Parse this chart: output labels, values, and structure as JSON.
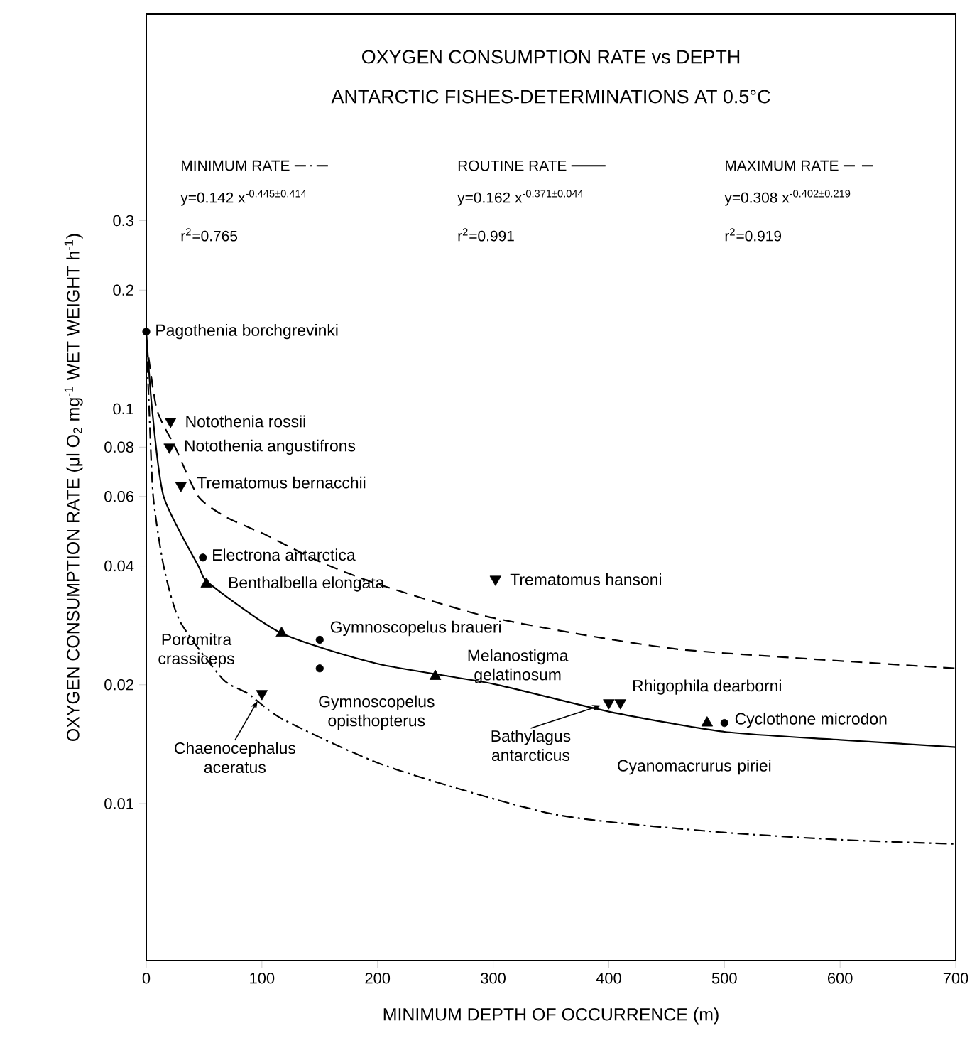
{
  "chart_data": {
    "type": "scatter",
    "title": "OXYGEN CONSUMPTION RATE vs DEPTH",
    "subtitle": "ANTARCTIC FISHES-DETERMINATIONS AT 0.5°C",
    "xlabel": "MINIMUM DEPTH OF OCCURRENCE (m)",
    "ylabel": "OXYGEN CONSUMPTION RATE (μl O$_{2}$   mg$^{-1}$ WET WEIGHT h$^{-1}$)",
    "log": "y",
    "legend": "top",
    "xlim": [
      0,
      700
    ],
    "ylim": [
      0.004,
      1
    ],
    "xticks": [
      0,
      100,
      200,
      300,
      400,
      500,
      600,
      700
    ],
    "yticks": [
      0.01,
      0.02,
      0.04,
      0.06,
      0.08,
      0.1,
      0.2,
      0.3
    ],
    "series": [
      {
        "name": "MINIMUM RATE",
        "type": "line",
        "line_style": "dashdot",
        "marker": "none",
        "color": "#000000",
        "x": [
          0,
          2.5,
          6,
          15,
          29,
          66,
          88,
          119,
          209,
          352,
          488,
          600,
          700
        ],
        "values": [
          0.15,
          0.1,
          0.06,
          0.04,
          0.029,
          0.0207,
          0.019,
          0.0163,
          0.0124,
          0.0094,
          0.0085,
          0.0081,
          0.0079
        ]
      },
      {
        "name": "ROUTINE RATE",
        "type": "line",
        "line_style": "solid",
        "marker": "none",
        "color": "#000000",
        "x": [
          0,
          5,
          15,
          45,
          55,
          117,
          200,
          300,
          400,
          500,
          600,
          700
        ],
        "values": [
          0.157,
          0.1,
          0.06,
          0.04,
          0.036,
          0.027,
          0.0226,
          0.0201,
          0.0171,
          0.0152,
          0.0145,
          0.0139
        ]
      },
      {
        "name": "MAXIMUM RATE",
        "type": "line",
        "line_style": "dashed",
        "marker": "none",
        "color": "#000000",
        "x": [
          0,
          9,
          25,
          45,
          70,
          103,
          150,
          200,
          290,
          380,
          460,
          550,
          700
        ],
        "values": [
          0.15,
          0.1,
          0.08,
          0.06,
          0.053,
          0.048,
          0.041,
          0.036,
          0.03,
          0.0267,
          0.0246,
          0.0235,
          0.022
        ]
      },
      {
        "marker": "circle",
        "color": "#000000",
        "x": [
          0,
          49,
          150,
          150,
          500
        ],
        "values": [
          0.157,
          0.042,
          0.026,
          0.022,
          0.016
        ]
      },
      {
        "marker": "triangle",
        "color": "#000000",
        "x": [
          52,
          117,
          250,
          485
        ],
        "values": [
          0.036,
          0.027,
          0.021,
          0.016
        ]
      },
      {
        "marker": "triangle-down",
        "color": "#000000",
        "x": [
          21,
          20,
          30,
          302,
          100,
          400,
          410
        ],
        "values": [
          0.093,
          0.08,
          0.064,
          0.037,
          0.019,
          0.018,
          0.018
        ]
      }
    ],
    "annotations": [
      "y=0.142 x$^{-0.445±0.414}$",
      "r$^{2}$=0.765",
      "y=0.162 x$^{-0.371±0.044}$",
      "r$^{2}$=0.991",
      "y=0.308 x$^{-0.402±0.219}$",
      "r$^{2}$=0.919",
      {
        "text": "Pagothenia borchgrevinki",
        "x": 0,
        "y": 0.157
      },
      {
        "text": "Notothenia rossii",
        "x": 21,
        "y": 0.093
      },
      {
        "text": "Notothenia angustifrons",
        "x": 20,
        "y": 0.08
      },
      {
        "text": "Trematomus bernacchii",
        "x": 30,
        "y": 0.064
      },
      {
        "text": "Electrona antarctica",
        "x": 49,
        "y": 0.042
      },
      {
        "text": "Benthalbella elongata",
        "x": 52,
        "y": 0.036
      },
      {
        "text": "Trematomus hansoni",
        "x": 302,
        "y": 0.037
      },
      {
        "text": "Poromitra crassiceps",
        "x": 117,
        "y": 0.027
      },
      {
        "text": "Gymnoscopelus braueri",
        "x": 150,
        "y": 0.026
      },
      {
        "text": "Gymnoscopelus opisthopterus",
        "x": 150,
        "y": 0.022
      },
      {
        "text": "Melanostigma gelatinosum",
        "x": 250,
        "y": 0.021
      },
      {
        "text": "Chaenocephalus aceratus",
        "x": 100,
        "y": 0.019
      },
      {
        "text": "Bathylagus antarcticus",
        "x": 400,
        "y": 0.018
      },
      {
        "text": "Rhigophila dearborni",
        "x": 410,
        "y": 0.018
      },
      {
        "text": "Cyanomacrurus piriei",
        "x": 485,
        "y": 0.016
      },
      {
        "text": "Cyclothone microdon",
        "x": 500,
        "y": 0.016
      }
    ]
  }
}
